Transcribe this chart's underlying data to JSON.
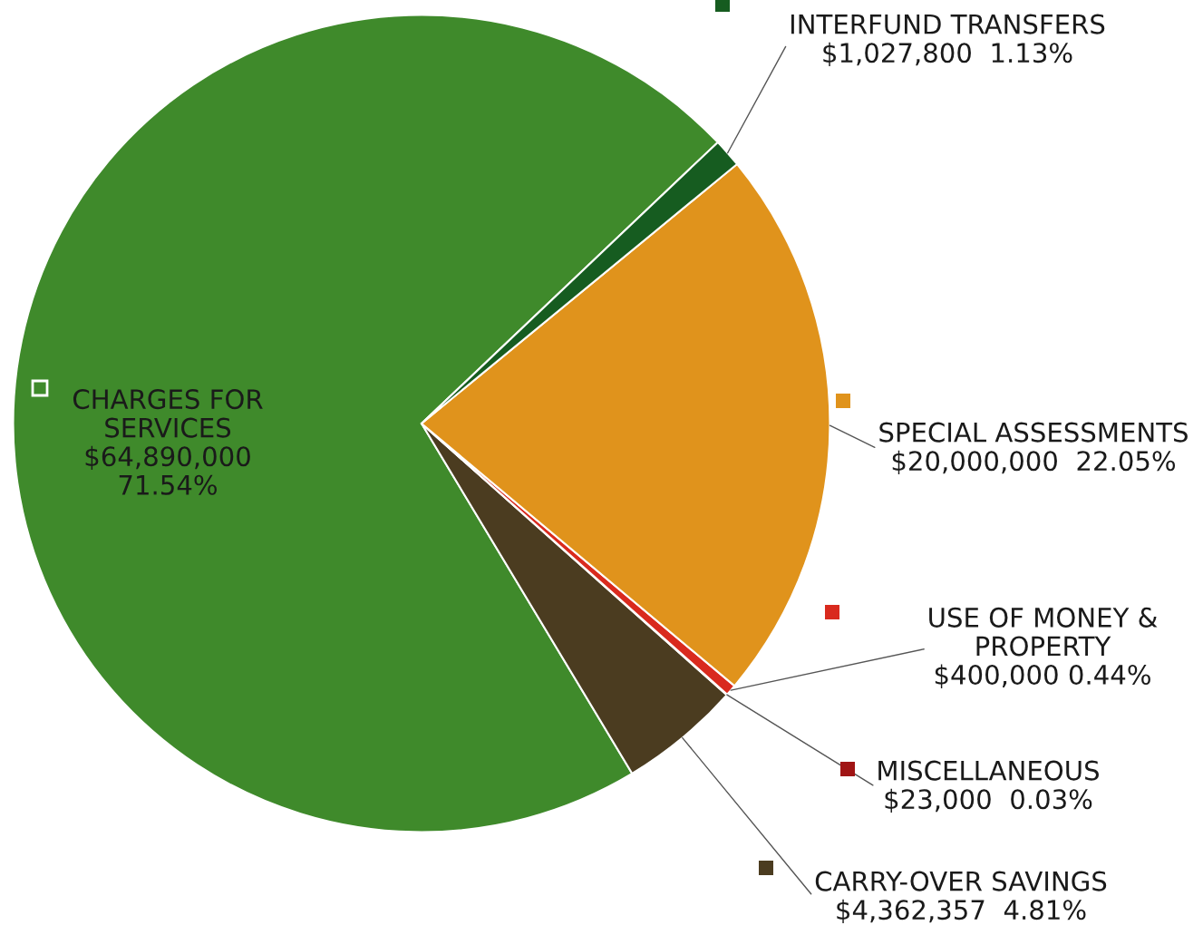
{
  "chart_data": {
    "type": "pie",
    "legend": "right",
    "categories": [
      "CHARGES FOR SERVICES",
      "CARRY-OVER SAVINGS",
      "MISCELLANEOUS",
      "USE OF MONEY & PROPERTY",
      "SPECIAL ASSESSMENTS",
      "INTERFUND TRANSFERS"
    ],
    "values": [
      64890000,
      4362357,
      23000,
      400000,
      20000000,
      1027800
    ],
    "value_labels": [
      "$64,890,000 71.54%",
      "$4,362,357  4.81%",
      "$23,000  0.03%",
      "$400,000 0.44%",
      "$20,000,000  22.05%",
      "$1,027,800  1.13%"
    ],
    "colors": [
      "#3f8a2b",
      "#4b3c20",
      "#a01414",
      "#d92a1e",
      "#e0931c",
      "#165c20"
    ]
  }
}
